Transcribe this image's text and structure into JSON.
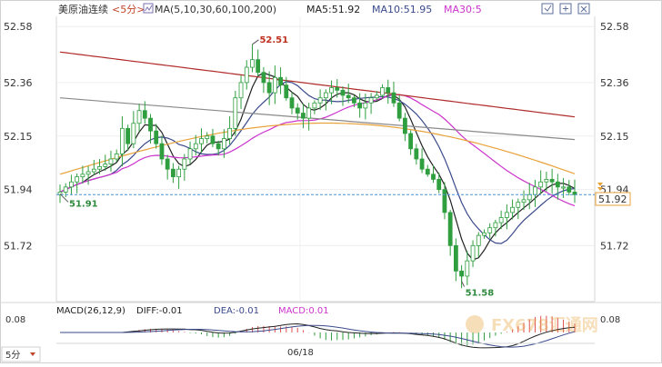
{
  "header": {
    "title": "美原油连续",
    "period": "<5分>",
    "ma_params": "MA(5,10,30,60,100,200)",
    "ma5": "MA5:51.92",
    "ma10": "MA10:51.95",
    "ma30": "MA30:5"
  },
  "price_axis_left": [
    "52.58",
    "52.36",
    "52.15",
    "51.94",
    "51.72"
  ],
  "price_axis_right": [
    "52.58",
    "52.36",
    "52.15",
    "51.94",
    "51.72"
  ],
  "current_price": "51.92",
  "annotations": {
    "high": "52.51",
    "start_low": "51.91",
    "low": "51.58"
  },
  "macd": {
    "label_params": "MACD(26,12,9)",
    "diff": "DIFF:-0.01",
    "dea": "DEA:-0.01",
    "macd": "MACD:0.01",
    "axis_top": "0.08",
    "axis_top_right": "0.08"
  },
  "x_axis": {
    "date": "06/18"
  },
  "footer": {
    "period_button": "5分",
    "watermark": "FX678汇通网"
  },
  "colors": {
    "up": "#2e9e3e",
    "down": "#2e9e3e",
    "ma5": "#222222",
    "ma10": "#3a4a8c",
    "ma30": "#cc33cc",
    "ma60": "#e8a23a",
    "ma100": "#8a8a8a",
    "ma200": "#b02a2a",
    "last_price_line": "#4a90d9",
    "highlight": "#c03020"
  },
  "chart_data": {
    "type": "candlestick",
    "ylim": [
      51.5,
      52.62
    ],
    "y_ticks": [
      52.58,
      52.36,
      52.15,
      51.94,
      51.72
    ],
    "last_price": 51.92,
    "high": 52.51,
    "low": 51.58,
    "close_series": [
      51.93,
      51.95,
      51.97,
      51.99,
      52.0,
      52.01,
      52.02,
      52.03,
      52.04,
      52.06,
      52.08,
      52.18,
      52.12,
      52.2,
      52.25,
      52.22,
      52.17,
      52.12,
      52.06,
      52.02,
      51.99,
      52.02,
      52.06,
      52.1,
      52.12,
      52.14,
      52.15,
      52.12,
      52.1,
      52.14,
      52.18,
      52.3,
      52.36,
      52.42,
      52.45,
      52.4,
      52.36,
      52.32,
      52.38,
      52.35,
      52.3,
      52.26,
      52.24,
      52.22,
      52.26,
      52.28,
      52.3,
      52.32,
      52.34,
      52.33,
      52.31,
      52.3,
      52.28,
      52.26,
      52.28,
      52.3,
      52.31,
      52.34,
      52.32,
      52.28,
      52.22,
      52.16,
      52.1,
      52.06,
      52.02,
      52.0,
      51.98,
      51.94,
      51.85,
      51.72,
      51.62,
      51.6,
      51.66,
      51.72,
      51.76,
      51.77,
      51.79,
      51.81,
      51.83,
      51.85,
      51.87,
      51.89,
      51.9,
      51.92,
      51.95,
      51.97,
      51.98,
      51.97,
      51.95,
      51.95,
      51.93,
      51.92
    ],
    "macd_axis": [
      0.08
    ]
  }
}
